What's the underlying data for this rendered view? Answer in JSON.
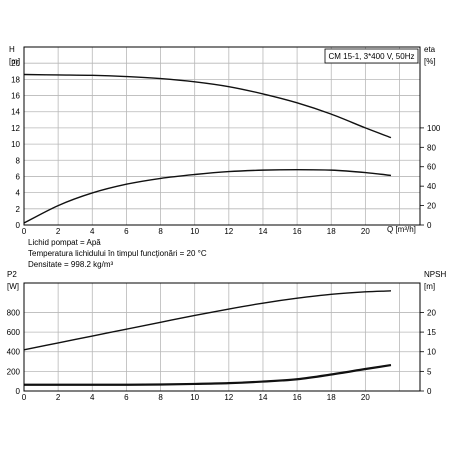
{
  "chart_data": [
    {
      "type": "line",
      "title": "CM 15-1, 3*400 V, 50Hz",
      "xlabel": "Q [m³/h]",
      "xlim": [
        0,
        23.2
      ],
      "x_ticks": [
        0,
        2,
        4,
        6,
        8,
        10,
        12,
        14,
        16,
        18,
        20
      ],
      "grid": true,
      "left_axis": {
        "label_top": "H",
        "label_unit": "[m]",
        "ylim": [
          0,
          22
        ],
        "ticks": [
          0,
          2,
          4,
          6,
          8,
          10,
          12,
          14,
          16,
          18,
          20
        ]
      },
      "right_axis": {
        "label_top": "eta",
        "label_unit": "[%]",
        "ylim": [
          0,
          183.3
        ],
        "ticks": [
          0,
          20,
          40,
          60,
          80,
          100
        ]
      },
      "series": [
        {
          "axis": "left",
          "points": [
            [
              0,
              18.6
            ],
            [
              2,
              18.55
            ],
            [
              4,
              18.5
            ],
            [
              6,
              18.35
            ],
            [
              8,
              18.1
            ],
            [
              10,
              17.7
            ],
            [
              12,
              17.1
            ],
            [
              14,
              16.2
            ],
            [
              16,
              15.1
            ],
            [
              18,
              13.7
            ],
            [
              20,
              12.0
            ],
            [
              21.5,
              10.8
            ]
          ]
        },
        {
          "axis": "right",
          "points": [
            [
              0,
              2
            ],
            [
              2,
              20
            ],
            [
              4,
              33
            ],
            [
              6,
              42
            ],
            [
              8,
              48
            ],
            [
              10,
              52
            ],
            [
              12,
              55
            ],
            [
              14,
              56.5
            ],
            [
              16,
              57
            ],
            [
              18,
              56.5
            ],
            [
              20,
              54
            ],
            [
              21.5,
              51
            ]
          ]
        }
      ]
    },
    {
      "type": "line",
      "xlim": [
        0,
        23.2
      ],
      "x_ticks": [
        0,
        2,
        4,
        6,
        8,
        10,
        12,
        14,
        16,
        18,
        20
      ],
      "grid": true,
      "left_axis": {
        "label_top": "P2",
        "label_unit": "[W]",
        "ylim": [
          0,
          1100
        ],
        "ticks": [
          0,
          200,
          400,
          600,
          800
        ]
      },
      "right_axis": {
        "label_top": "NPSH",
        "label_unit": "[m]",
        "ylim": [
          0,
          27.5
        ],
        "ticks": [
          0,
          5,
          10,
          15,
          20
        ]
      },
      "series": [
        {
          "axis": "left",
          "points": [
            [
              0,
              420
            ],
            [
              2,
              490
            ],
            [
              4,
              560
            ],
            [
              6,
              630
            ],
            [
              8,
              700
            ],
            [
              10,
              770
            ],
            [
              12,
              835
            ],
            [
              14,
              895
            ],
            [
              16,
              945
            ],
            [
              18,
              985
            ],
            [
              20,
              1010
            ],
            [
              21.5,
              1020
            ]
          ]
        },
        {
          "axis": "right",
          "points": [
            [
              0,
              1.6
            ],
            [
              2,
              1.6
            ],
            [
              4,
              1.6
            ],
            [
              6,
              1.6
            ],
            [
              8,
              1.65
            ],
            [
              10,
              1.8
            ],
            [
              12,
              2.0
            ],
            [
              14,
              2.4
            ],
            [
              16,
              3.0
            ],
            [
              18,
              4.2
            ],
            [
              20,
              5.6
            ],
            [
              21.5,
              6.6
            ]
          ]
        }
      ]
    }
  ],
  "notes": [
    "Lichid pompat = Apă",
    "Temperatura lichidului în timpul funcţionări = 20 °C",
    "Densitate = 998.2 kg/m³"
  ]
}
